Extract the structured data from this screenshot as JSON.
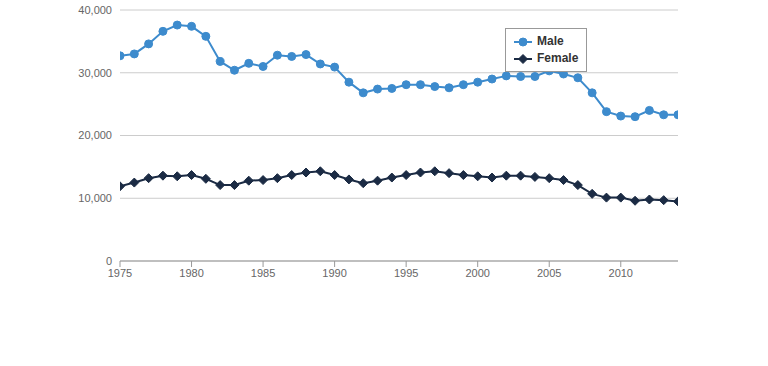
{
  "chart_data": {
    "type": "line",
    "x": [
      1975,
      1976,
      1977,
      1978,
      1979,
      1980,
      1981,
      1982,
      1983,
      1984,
      1985,
      1986,
      1987,
      1988,
      1989,
      1990,
      1991,
      1992,
      1993,
      1994,
      1995,
      1996,
      1997,
      1998,
      1999,
      2000,
      2001,
      2002,
      2003,
      2004,
      2005,
      2006,
      2007,
      2008,
      2009,
      2010,
      2011,
      2012,
      2013,
      2014
    ],
    "series": [
      {
        "name": "Male",
        "color": "#3d8bcd",
        "marker": "circle",
        "values": [
          32700,
          33000,
          34600,
          36600,
          37600,
          37400,
          35800,
          31800,
          30400,
          31500,
          31000,
          32800,
          32600,
          32900,
          31400,
          30900,
          28500,
          26800,
          27400,
          27500,
          28100,
          28100,
          27800,
          27600,
          28100,
          28500,
          29000,
          29500,
          29400,
          29400,
          30300,
          29800,
          29200,
          26800,
          23800,
          23100,
          23000,
          24000,
          23300,
          23300
        ]
      },
      {
        "name": "Female",
        "color": "#1b2b44",
        "marker": "diamond",
        "values": [
          11900,
          12500,
          13200,
          13600,
          13500,
          13700,
          13100,
          12100,
          12100,
          12800,
          12900,
          13200,
          13700,
          14100,
          14300,
          13700,
          13000,
          12400,
          12800,
          13300,
          13700,
          14100,
          14300,
          14000,
          13700,
          13500,
          13300,
          13600,
          13600,
          13400,
          13200,
          12900,
          12100,
          10700,
          10100,
          10100,
          9600,
          9800,
          9700,
          9500
        ]
      }
    ],
    "xlim": [
      1975,
      2014
    ],
    "xticks": [
      1975,
      1980,
      1985,
      1990,
      1995,
      2000,
      2005,
      2010
    ],
    "ylim": [
      0,
      40000
    ],
    "yticks": [
      0,
      {
        "value": 10000,
        "label": "10,000"
      },
      {
        "value": 20000,
        "label": "20,000"
      },
      {
        "value": 30000,
        "label": "30,000"
      },
      {
        "value": 40000,
        "label": "40,000"
      }
    ],
    "grid": true,
    "legend": "upper right"
  }
}
